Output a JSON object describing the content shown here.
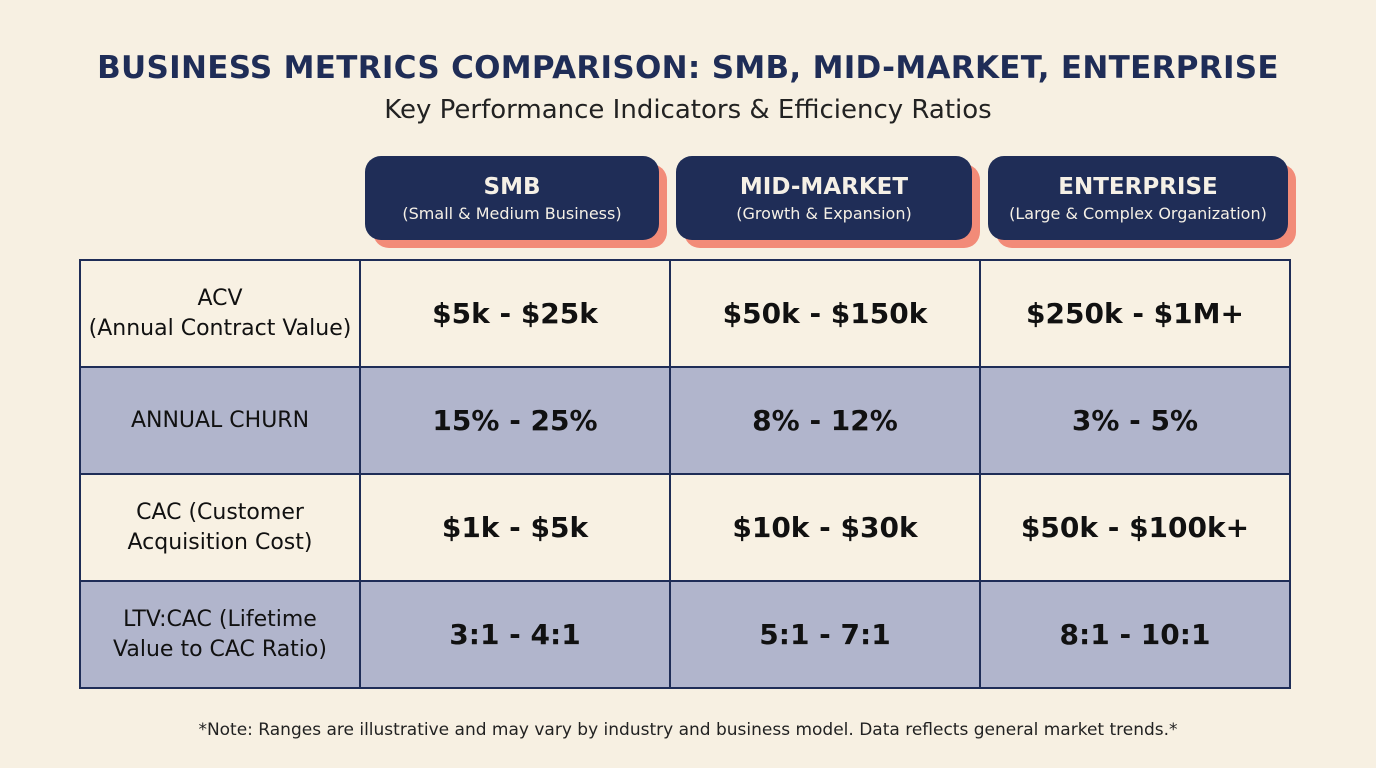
{
  "title": "BUSINESS METRICS COMPARISON: SMB, MID-MARKET, ENTERPRISE",
  "subtitle": "Key Performance Indicators & Efficiency Ratios",
  "columns": [
    {
      "name": "SMB",
      "desc": "(Small & Medium Business)"
    },
    {
      "name": "MID-MARKET",
      "desc": "(Growth & Expansion)"
    },
    {
      "name": "ENTERPRISE",
      "desc": "(Large & Complex Organization)"
    }
  ],
  "rows": [
    {
      "label": "ACV",
      "sublabel": "(Annual Contract Value)",
      "values": [
        "$5k - $25k",
        "$50k - $150k",
        "$250k - $1M+"
      ]
    },
    {
      "label": "ANNUAL CHURN",
      "sublabel": "",
      "values": [
        "15% - 25%",
        "8% - 12%",
        "3% - 5%"
      ]
    },
    {
      "label": "CAC (Customer",
      "sublabel": "Acquisition Cost)",
      "values": [
        "$1k - $5k",
        "$10k - $30k",
        "$50k - $100k+"
      ]
    },
    {
      "label": "LTV:CAC (Lifetime",
      "sublabel": "Value to CAC Ratio)",
      "values": [
        "3:1 - 4:1",
        "5:1 - 7:1",
        "8:1 - 10:1"
      ]
    }
  ],
  "note": "*Note: Ranges are illustrative and may vary by industry and business model. Data reflects general market trends.*",
  "colors": {
    "navy": "#1f2d57",
    "coral": "#f28b78",
    "background": "#f7f0e2",
    "shaded_row": "#b1b5cc"
  },
  "chart_data": {
    "type": "table",
    "categories": [
      "SMB",
      "MID-MARKET",
      "ENTERPRISE"
    ]
  }
}
